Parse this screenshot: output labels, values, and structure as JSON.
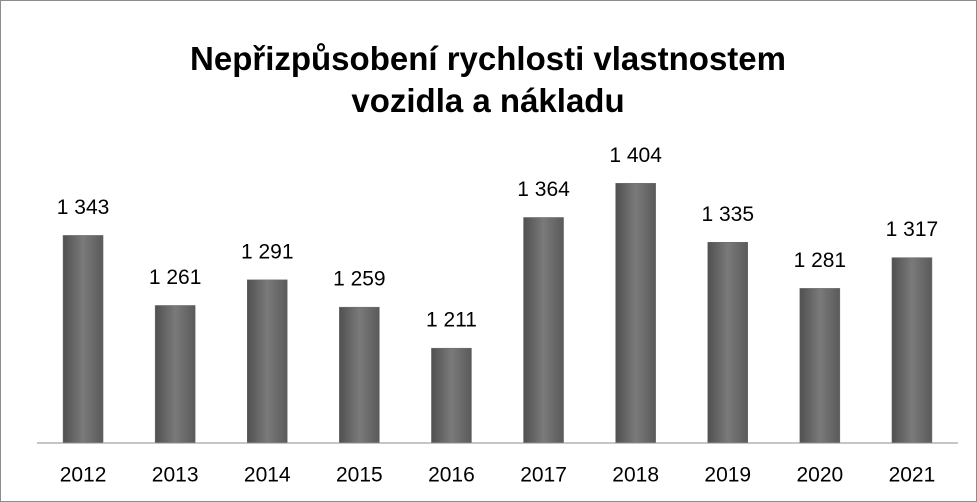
{
  "chart_data": {
    "type": "bar",
    "title": "Nepřizpůsobení rychlosti vlastnostem vozidla a nákladu",
    "categories": [
      "2012",
      "2013",
      "2014",
      "2015",
      "2016",
      "2017",
      "2018",
      "2019",
      "2020",
      "2021"
    ],
    "values": [
      1343,
      1261,
      1291,
      1259,
      1211,
      1364,
      1404,
      1335,
      1281,
      1317
    ],
    "value_labels": [
      "1 343",
      "1 261",
      "1 291",
      "1 259",
      "1 211",
      "1 364",
      "1 404",
      "1 335",
      "1 281",
      "1 317"
    ],
    "color": "#6b6b6b",
    "ylim": [
      1100,
      1450
    ]
  }
}
